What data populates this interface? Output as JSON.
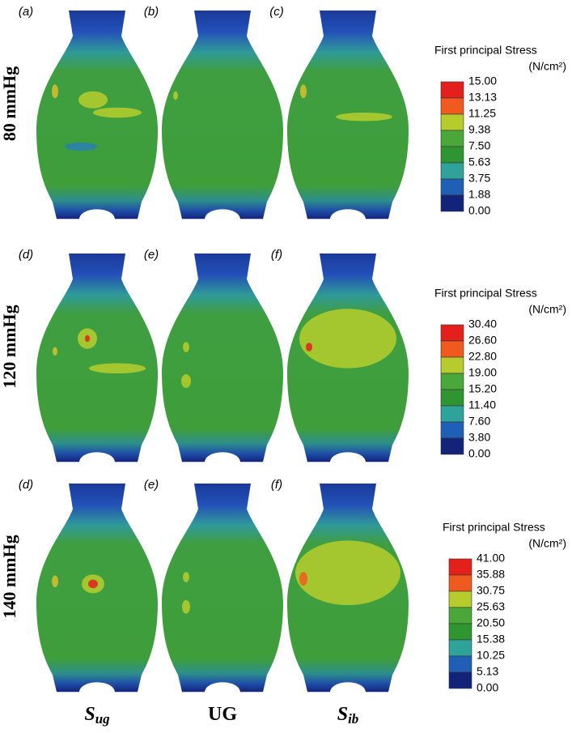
{
  "rows": [
    {
      "label": "80 mmHg",
      "panels": [
        "(a)",
        "(b)",
        "(c)"
      ],
      "legend": {
        "title": "First principal Stress",
        "unit": "(N/cm²)",
        "ticks": [
          "15.00",
          "13.13",
          "11.25",
          "9.38",
          "7.50",
          "5.63",
          "3.75",
          "1.88",
          "0.00"
        ]
      }
    },
    {
      "label": "120 mmHg",
      "panels": [
        "(d)",
        "(e)",
        "(f)"
      ],
      "legend": {
        "title": "First principal Stress",
        "unit": "(N/cm²)",
        "ticks": [
          "30.40",
          "26.60",
          "22.80",
          "19.00",
          "15.20",
          "11.40",
          "7.60",
          "3.80",
          "0.00"
        ]
      }
    },
    {
      "label": "140 mmHg",
      "panels": [
        "(d)",
        "(e)",
        "(f)"
      ],
      "legend": {
        "title": "First principal Stress",
        "unit": "(N/cm²)",
        "ticks": [
          "41.00",
          "35.88",
          "30.75",
          "25.63",
          "20.50",
          "15.38",
          "10.25",
          "5.13",
          "0.00"
        ]
      }
    }
  ],
  "columns": [
    {
      "main": "S",
      "sub": "ug"
    },
    {
      "main": "UG"
    },
    {
      "main": "S",
      "sub": "ib"
    }
  ],
  "legend_colors": [
    "#e3201b",
    "#f05a1e",
    "#b6cc2c",
    "#4aa83a",
    "#2f9530",
    "#2fa39a",
    "#1f5fb5",
    "#14237a"
  ]
}
